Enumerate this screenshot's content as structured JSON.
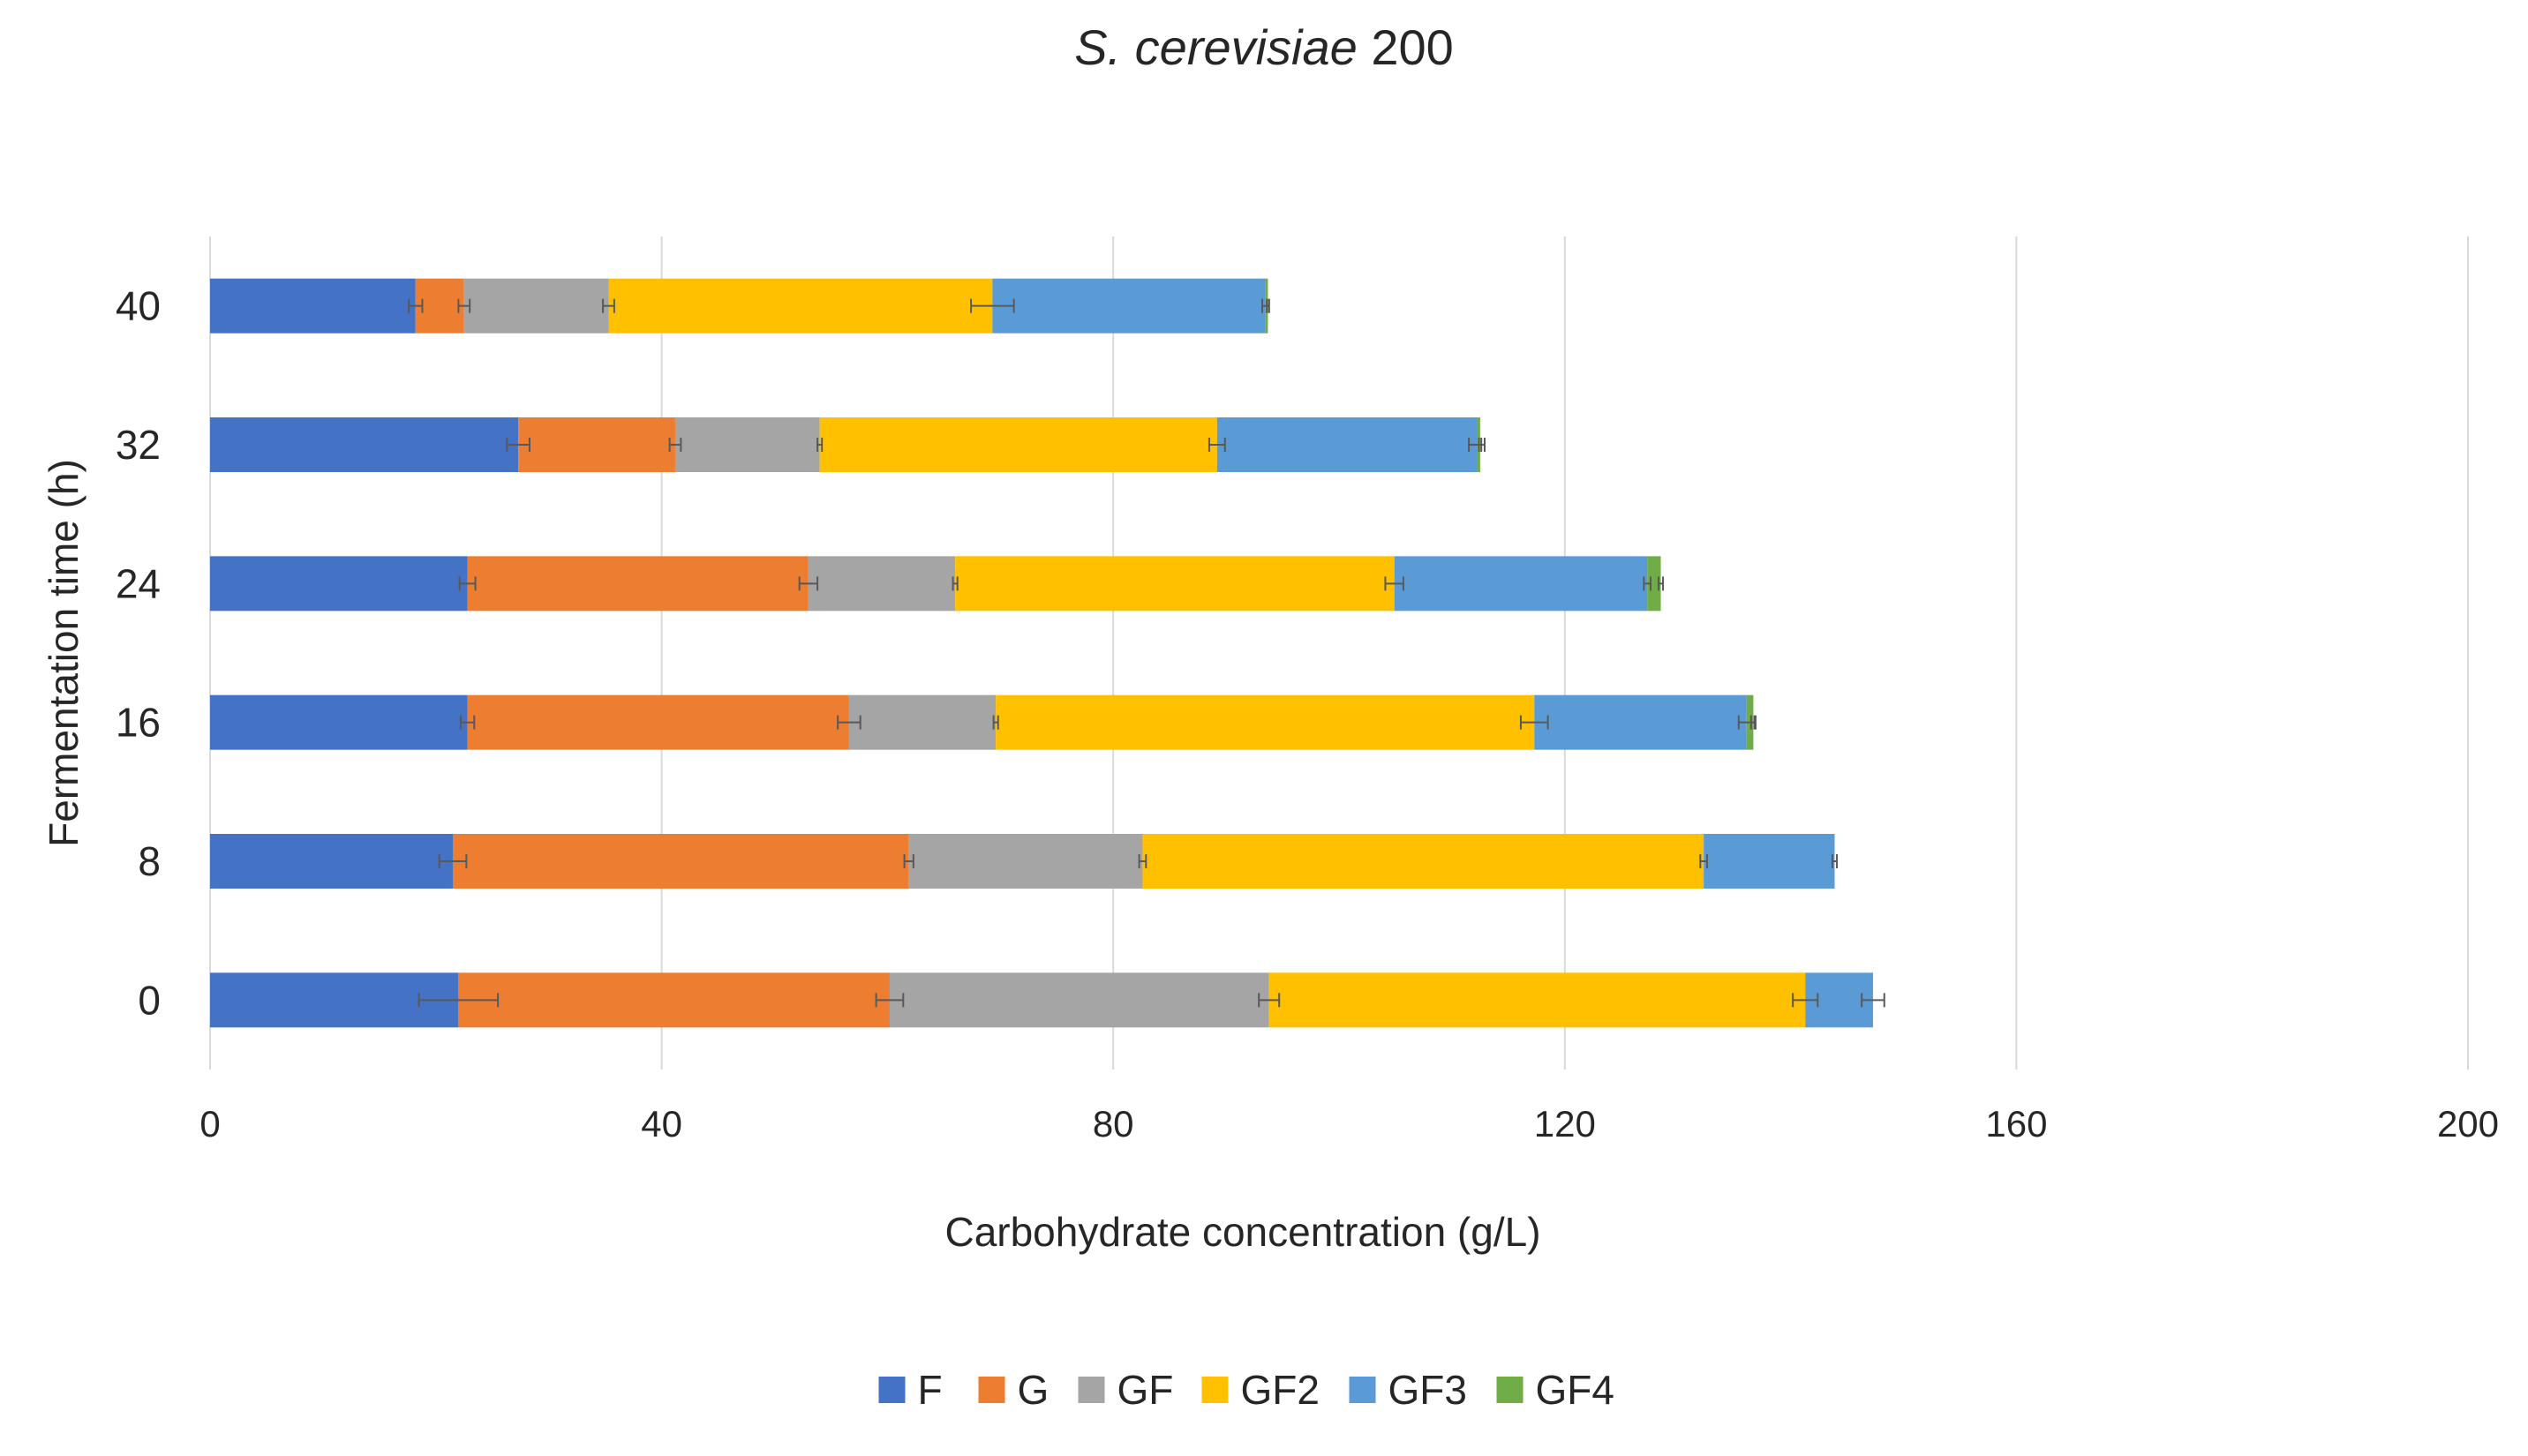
{
  "chart_data": {
    "type": "bar",
    "orientation": "horizontal",
    "stacked": true,
    "title_italic": "S. cerevisiae",
    "title_rest": " 200",
    "xlabel": "Carbohydrate concentration (g/L)",
    "ylabel": "Fermentation time (h)",
    "xlim": [
      0,
      200
    ],
    "xticks": [
      "0",
      "40",
      "80",
      "120",
      "160",
      "200"
    ],
    "categories": [
      "0",
      "8",
      "16",
      "24",
      "32",
      "40"
    ],
    "grid": "vertical",
    "legend_position": "bottom",
    "series": [
      {
        "name": "F",
        "color": "#4472C4",
        "values": [
          22.0,
          21.5,
          22.8,
          22.8,
          27.3,
          18.2
        ],
        "errors": [
          3.5,
          1.2,
          0.6,
          0.7,
          1.0,
          0.6
        ]
      },
      {
        "name": "G",
        "color": "#ED7D31",
        "values": [
          38.2,
          40.4,
          33.8,
          30.2,
          13.9,
          4.3
        ],
        "errors": [
          1.2,
          0.4,
          1.0,
          0.8,
          0.5,
          0.5
        ]
      },
      {
        "name": "GF",
        "color": "#A5A5A5",
        "values": [
          33.6,
          20.7,
          13.0,
          13.0,
          12.8,
          12.8
        ],
        "errors": [
          0.9,
          0.3,
          0.2,
          0.2,
          0.2,
          0.5
        ]
      },
      {
        "name": "GF2",
        "color": "#FFC000",
        "values": [
          47.5,
          49.7,
          47.7,
          38.9,
          35.2,
          34.0
        ],
        "errors": [
          1.1,
          0.3,
          1.2,
          0.8,
          0.7,
          1.9
        ]
      },
      {
        "name": "GF3",
        "color": "#5B9BD5",
        "values": [
          6.0,
          11.6,
          18.8,
          22.4,
          23.0,
          24.2
        ],
        "errors": [
          1.0,
          0.2,
          0.7,
          0.3,
          0.7,
          0.3
        ]
      },
      {
        "name": "GF4",
        "color": "#70AD47",
        "values": [
          0,
          0,
          0.6,
          1.2,
          0.3,
          0.2
        ],
        "errors": [
          0,
          0,
          0.2,
          0.2,
          0.1,
          0.1
        ]
      }
    ]
  }
}
